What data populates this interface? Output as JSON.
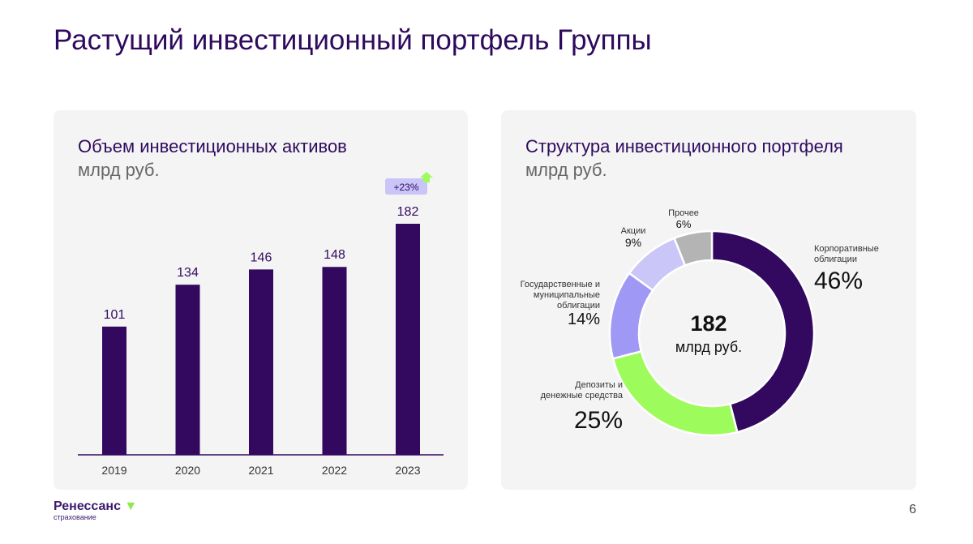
{
  "title": "Растущий инвестиционный портфель Группы",
  "page_number": "6",
  "logo": {
    "name": "Ренессанс",
    "sub": "страхование"
  },
  "chart_data": [
    {
      "type": "bar",
      "title": "Объем инвестиционных активов",
      "subtitle": "млрд руб.",
      "categories": [
        "2019",
        "2020",
        "2021",
        "2022",
        "2023"
      ],
      "values": [
        101,
        134,
        146,
        148,
        182
      ],
      "annotation": "+23%",
      "color": "#32095f",
      "ylim": [
        0,
        182
      ]
    },
    {
      "type": "pie",
      "title": "Структура инвестиционного портфеля",
      "subtitle": "млрд руб.",
      "center_value": "182",
      "center_unit": "млрд руб.",
      "slices": [
        {
          "label": "Корпоративные облигации",
          "value": 46,
          "display": "46%",
          "color": "#32095f"
        },
        {
          "label": "Депозиты и денежные средства",
          "value": 25,
          "display": "25%",
          "color": "#9efb5c"
        },
        {
          "label": "Государственные и муниципальные облигации",
          "value": 14,
          "display": "14%",
          "color": "#9f98f5"
        },
        {
          "label": "Акции",
          "value": 9,
          "display": "9%",
          "color": "#cac6f8"
        },
        {
          "label": "Прочее",
          "value": 6,
          "display": "6%",
          "color": "#b4b4b4"
        }
      ]
    }
  ]
}
